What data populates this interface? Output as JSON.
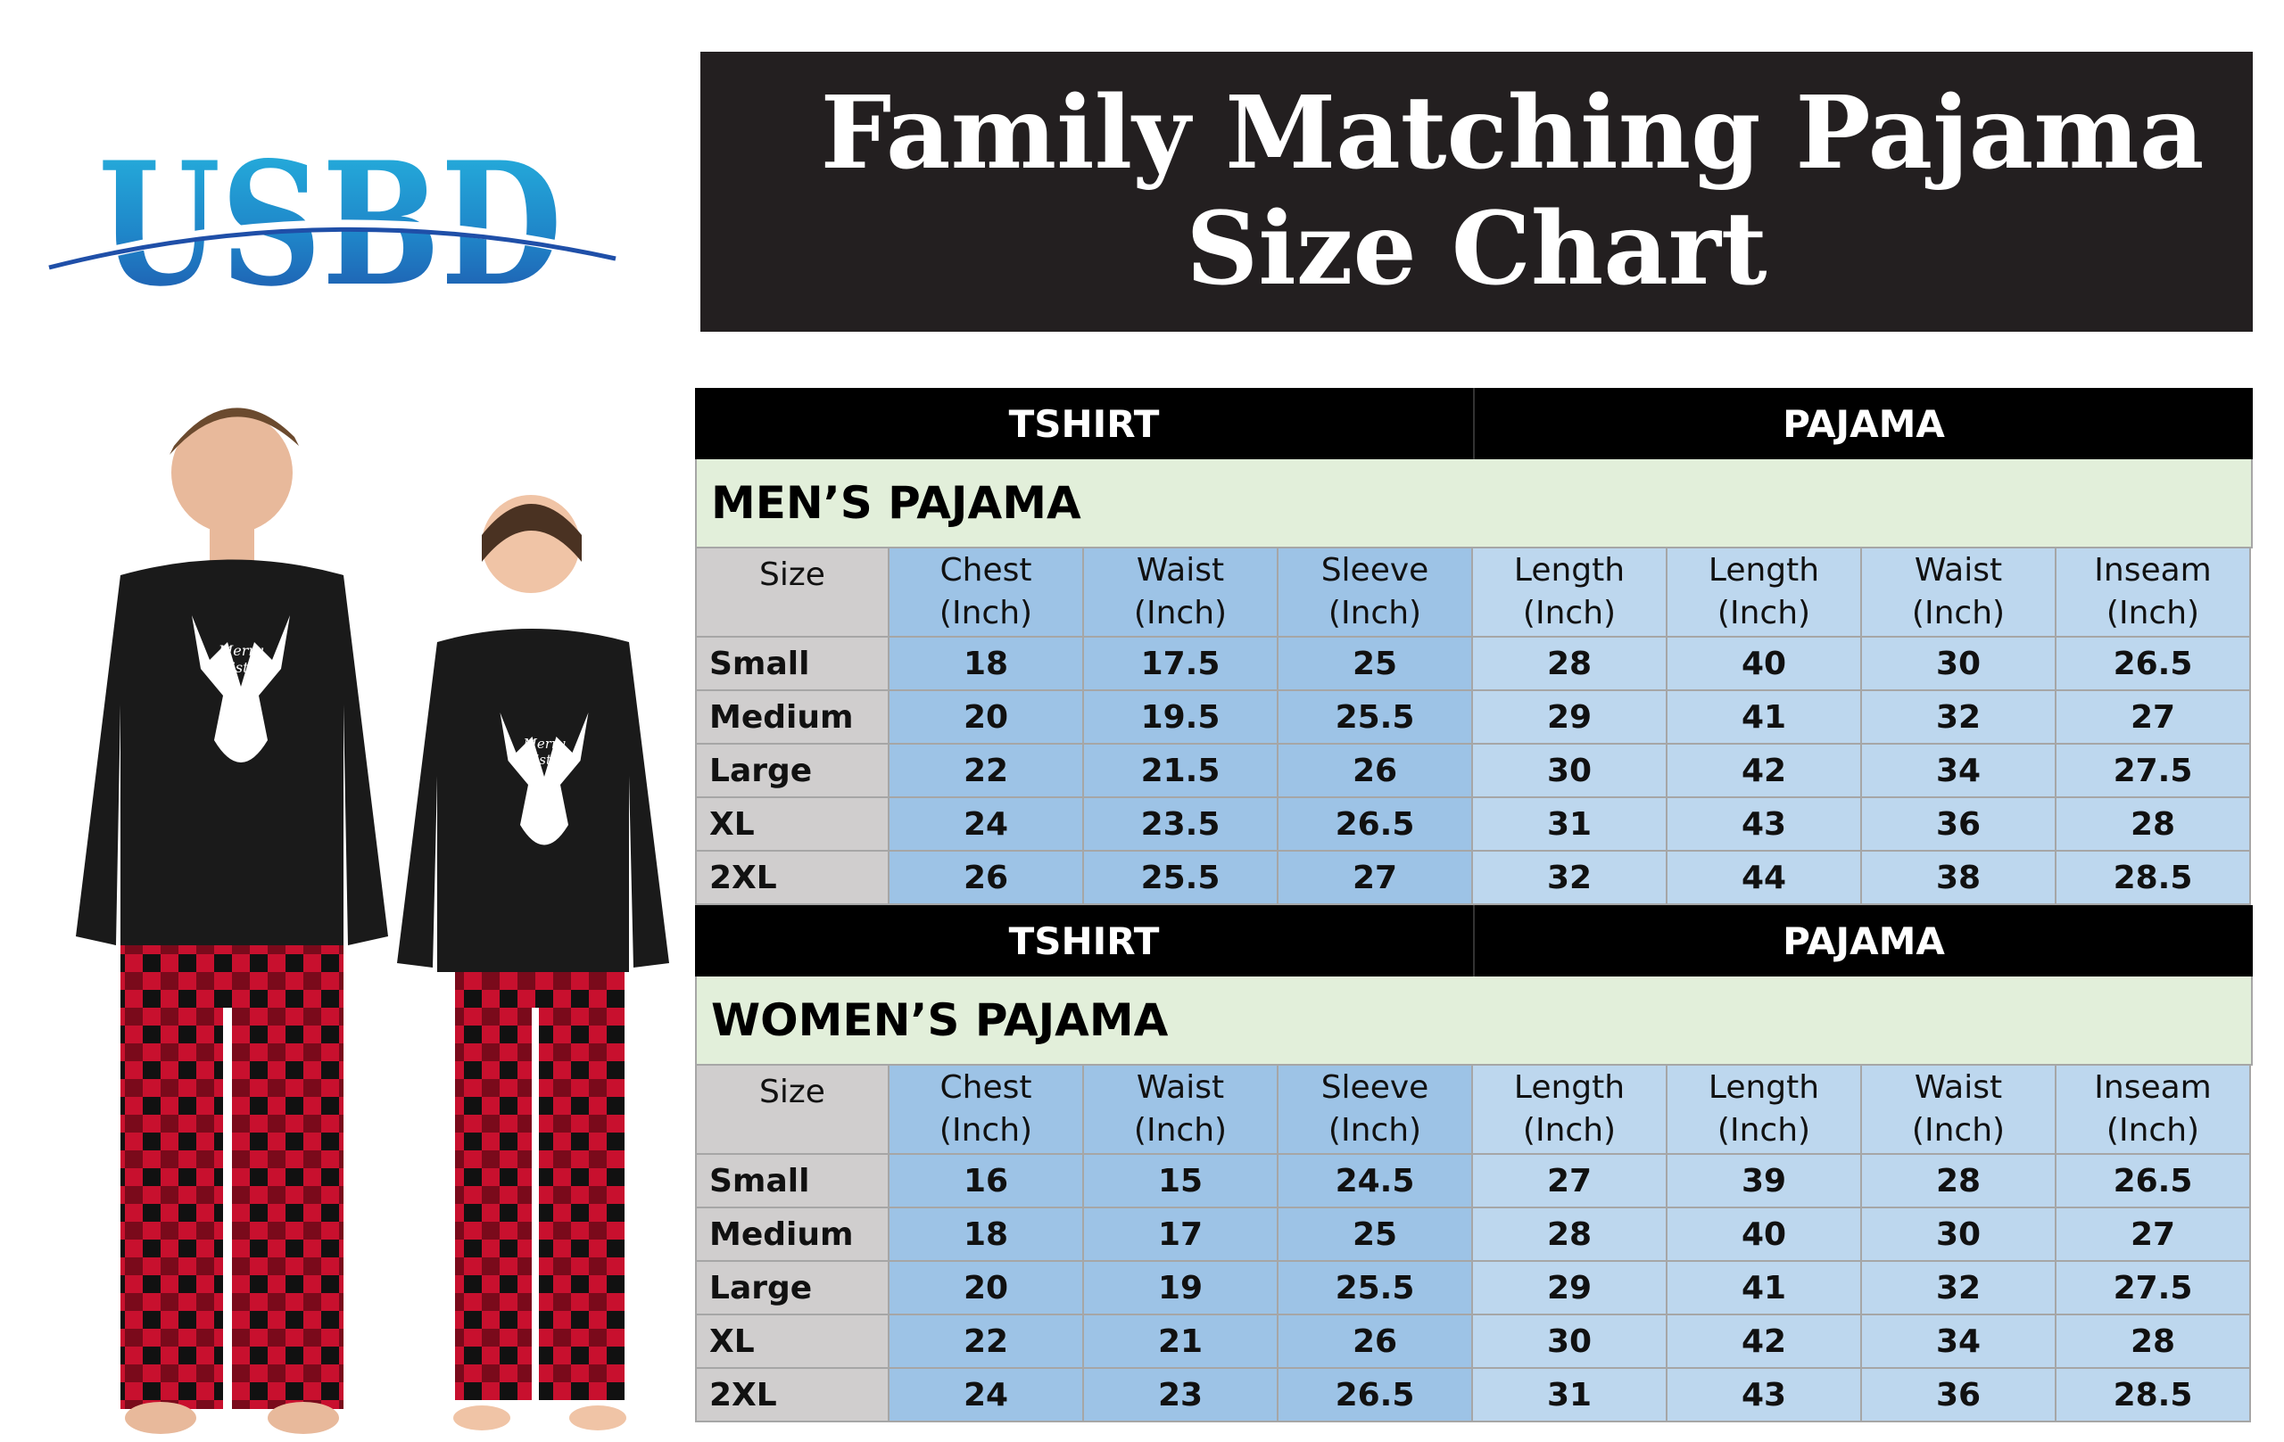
{
  "brand": {
    "logo_text": "USBD",
    "primary_color": "#1f5fb5",
    "secondary_color": "#26b7e0"
  },
  "title": {
    "line1": "Family Matching Pajama",
    "line2": "Size Chart"
  },
  "shirt_print": "Merry Christmas",
  "groups": {
    "tshirt": "TSHIRT",
    "pajama": "PAJAMA"
  },
  "columns": [
    {
      "l1": "Size",
      "l2": ""
    },
    {
      "l1": "Chest",
      "l2": "(Inch)"
    },
    {
      "l1": "Waist",
      "l2": "(Inch)"
    },
    {
      "l1": "Sleeve",
      "l2": "(Inch)"
    },
    {
      "l1": "Length",
      "l2": "(Inch)"
    },
    {
      "l1": "Length",
      "l2": "(Inch)"
    },
    {
      "l1": "Waist",
      "l2": "(Inch)"
    },
    {
      "l1": "Inseam",
      "l2": "(Inch)"
    }
  ],
  "mens": {
    "title": "MEN’S PAJAMA",
    "rows": [
      [
        "Small",
        "18",
        "17.5",
        "25",
        "28",
        "40",
        "30",
        "26.5"
      ],
      [
        "Medium",
        "20",
        "19.5",
        "25.5",
        "29",
        "41",
        "32",
        "27"
      ],
      [
        "Large",
        "22",
        "21.5",
        "26",
        "30",
        "42",
        "34",
        "27.5"
      ],
      [
        "XL",
        "24",
        "23.5",
        "26.5",
        "31",
        "43",
        "36",
        "28"
      ],
      [
        "2XL",
        "26",
        "25.5",
        "27",
        "32",
        "44",
        "38",
        "28.5"
      ]
    ]
  },
  "womens": {
    "title": "WOMEN’S PAJAMA",
    "rows": [
      [
        "Small",
        "16",
        "15",
        "24.5",
        "27",
        "39",
        "28",
        "26.5"
      ],
      [
        "Medium",
        "18",
        "17",
        "25",
        "28",
        "40",
        "30",
        "27"
      ],
      [
        "Large",
        "20",
        "19",
        "25.5",
        "29",
        "41",
        "32",
        "27.5"
      ],
      [
        "XL",
        "22",
        "21",
        "26",
        "30",
        "42",
        "34",
        "28"
      ],
      [
        "2XL",
        "24",
        "23",
        "26.5",
        "31",
        "43",
        "36",
        "28.5"
      ]
    ]
  }
}
